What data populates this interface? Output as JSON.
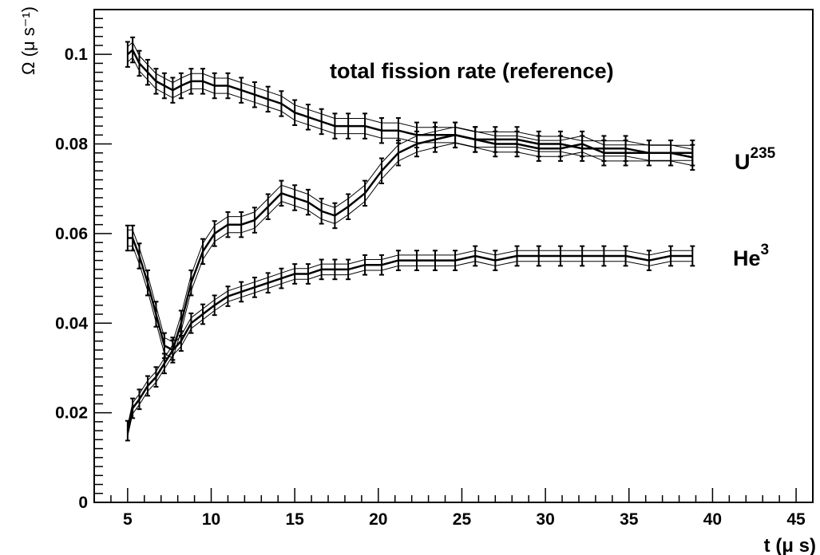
{
  "chart_data": {
    "type": "line",
    "title": "",
    "xlabel": "t (μ s)",
    "ylabel": "Ω (μ s⁻¹)",
    "xlim": [
      3,
      46
    ],
    "ylim": [
      0,
      0.11
    ],
    "x_ticks": [
      "5",
      "10",
      "15",
      "20",
      "25",
      "30",
      "35",
      "40",
      "45"
    ],
    "y_ticks": [
      "0",
      "0.02",
      "0.04",
      "0.06",
      "0.08",
      "0.1"
    ],
    "grid": false,
    "annotations": {
      "reference": "total fission rate (reference)",
      "u235": "U",
      "u235_sup": "235",
      "he3": "He",
      "he3_sup": "3"
    },
    "series": [
      {
        "x": [
          5,
          5.3,
          5.7,
          6.2,
          6.7,
          7.2,
          7.7,
          8.2,
          8.8,
          9.5,
          10.2,
          11,
          11.8,
          12.6,
          13.4,
          14.2,
          15,
          15.8,
          16.6,
          17.4,
          18.2,
          19.2,
          20.2,
          21.2,
          22.3,
          23.4,
          24.6,
          25.8,
          27,
          28.3,
          29.6,
          30.9,
          32.2,
          33.5,
          34.8,
          36.2,
          37.5,
          38.8
        ],
        "values": [
          0.1,
          0.101,
          0.098,
          0.096,
          0.094,
          0.093,
          0.092,
          0.093,
          0.094,
          0.094,
          0.093,
          0.093,
          0.092,
          0.091,
          0.09,
          0.089,
          0.087,
          0.086,
          0.085,
          0.084,
          0.084,
          0.084,
          0.083,
          0.083,
          0.082,
          0.082,
          0.082,
          0.081,
          0.081,
          0.081,
          0.08,
          0.08,
          0.079,
          0.079,
          0.079,
          0.078,
          0.078,
          0.078
        ],
        "error": 0.0028,
        "band": 0.0017
      },
      {
        "x": [
          5,
          5.3,
          5.7,
          6.2,
          6.7,
          7.2,
          7.7,
          8.2,
          8.8,
          9.5,
          10.2,
          11,
          11.8,
          12.6,
          13.4,
          14.2,
          15,
          15.8,
          16.6,
          17.4,
          18.2,
          19.2,
          20.2,
          21.2,
          22.3,
          23.4,
          24.6,
          25.8,
          27,
          28.3,
          29.6,
          30.9,
          32.2,
          33.5,
          34.8,
          36.2,
          37.5,
          38.8
        ],
        "values": [
          0.059,
          0.059,
          0.055,
          0.049,
          0.042,
          0.035,
          0.034,
          0.04,
          0.049,
          0.056,
          0.06,
          0.062,
          0.062,
          0.063,
          0.066,
          0.069,
          0.068,
          0.067,
          0.065,
          0.064,
          0.066,
          0.069,
          0.074,
          0.078,
          0.08,
          0.081,
          0.082,
          0.081,
          0.08,
          0.08,
          0.079,
          0.079,
          0.08,
          0.078,
          0.078,
          0.078,
          0.078,
          0.077
        ],
        "error": 0.0028,
        "band": 0.0018
      },
      {
        "x": [
          5,
          5.3,
          5.7,
          6.2,
          6.7,
          7.2,
          7.7,
          8.2,
          8.8,
          9.5,
          10.2,
          11,
          11.8,
          12.6,
          13.4,
          14.2,
          15,
          15.8,
          16.6,
          17.4,
          18.2,
          19.2,
          20.2,
          21.2,
          22.3,
          23.4,
          24.6,
          25.8,
          27,
          28.3,
          29.6,
          30.9,
          32.2,
          33.5,
          34.8,
          36.2,
          37.5,
          38.8
        ],
        "values": [
          0.016,
          0.021,
          0.023,
          0.026,
          0.028,
          0.031,
          0.034,
          0.036,
          0.04,
          0.042,
          0.044,
          0.046,
          0.047,
          0.048,
          0.049,
          0.05,
          0.051,
          0.051,
          0.052,
          0.052,
          0.052,
          0.053,
          0.053,
          0.054,
          0.054,
          0.054,
          0.054,
          0.055,
          0.054,
          0.055,
          0.055,
          0.055,
          0.055,
          0.055,
          0.055,
          0.054,
          0.055,
          0.055
        ],
        "error": 0.0022,
        "band": 0.0012
      }
    ]
  }
}
